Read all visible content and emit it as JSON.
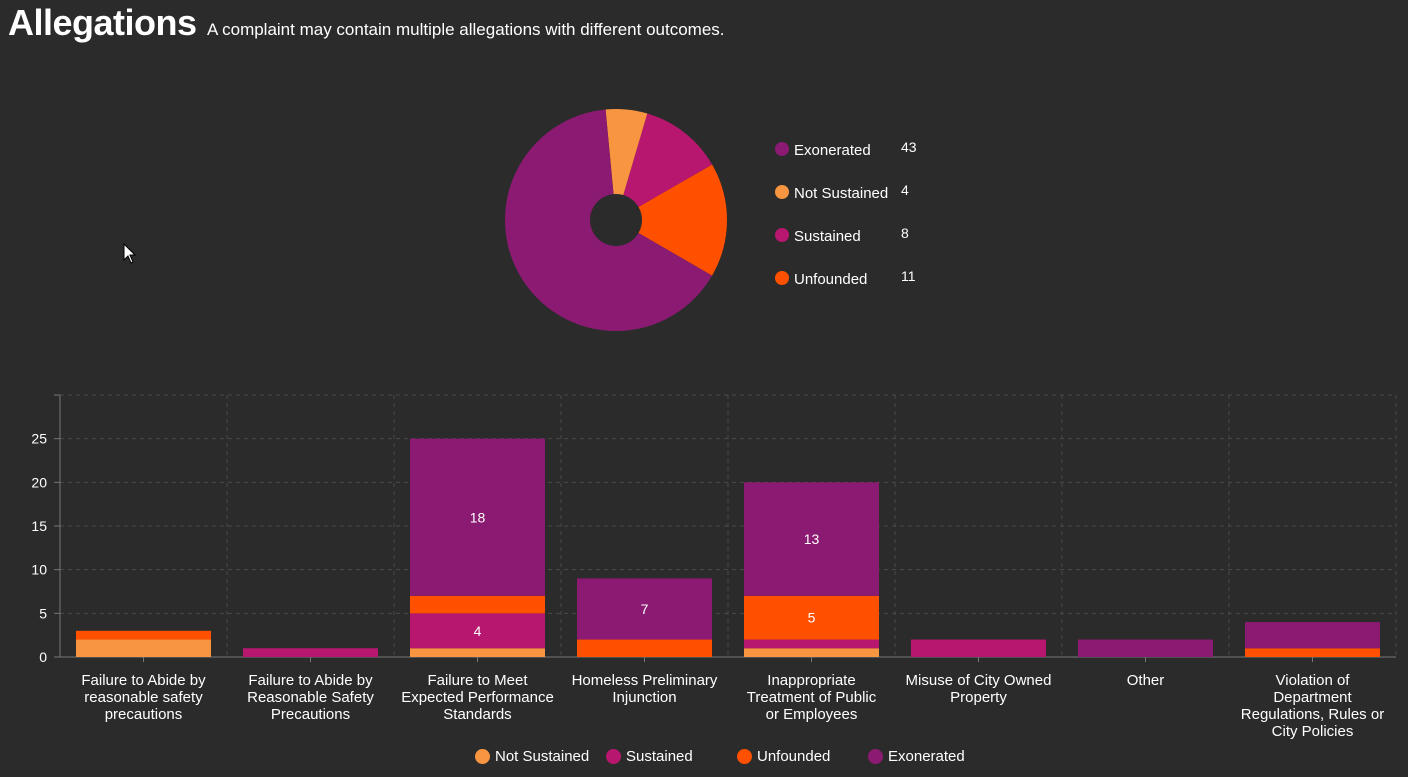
{
  "header": {
    "title": "Allegations",
    "subtitle": "A complaint may contain multiple allegations with different outcomes."
  },
  "colors": {
    "background": "#2b2b2b",
    "Exonerated": "#8b1a72",
    "Not Sustained": "#f89540",
    "Sustained": "#b8176f",
    "Unfounded": "#ff5000"
  },
  "chart_data": [
    {
      "type": "pie",
      "donut": true,
      "title": "",
      "slice_order": [
        "Not Sustained",
        "Sustained",
        "Unfounded",
        "Exonerated"
      ],
      "legend": [
        {
          "label": "Exonerated",
          "value": 43
        },
        {
          "label": "Not Sustained",
          "value": 4
        },
        {
          "label": "Sustained",
          "value": 8
        },
        {
          "label": "Unfounded",
          "value": 11
        }
      ],
      "legend_position": "right"
    },
    {
      "type": "bar",
      "stacked": true,
      "title": "",
      "xlabel": "",
      "ylabel": "",
      "ylim": [
        0,
        30
      ],
      "yticks": [
        0,
        5,
        10,
        15,
        20,
        25
      ],
      "grid": true,
      "categories": [
        "Failure to Abide by reasonable safety precautions",
        "Failure to Abide by Reasonable Safety Precautions",
        "Failure to Meet Expected Performance Standards",
        "Homeless Preliminary Injunction",
        "Inappropriate Treatment of Public or Employees",
        "Misuse of City Owned Property",
        "Other",
        "Violation of Department Regulations, Rules or City Policies"
      ],
      "category_lines": [
        [
          "Failure to Abide by",
          "reasonable safety",
          "precautions"
        ],
        [
          "Failure to Abide by",
          "Reasonable Safety",
          "Precautions"
        ],
        [
          "Failure to Meet",
          "Expected Performance",
          "Standards"
        ],
        [
          "Homeless Preliminary",
          "Injunction"
        ],
        [
          "Inappropriate",
          "Treatment of Public",
          "or Employees"
        ],
        [
          "Misuse of City Owned",
          "Property"
        ],
        [
          "Other"
        ],
        [
          "Violation of",
          "Department",
          "Regulations, Rules or",
          "City Policies"
        ]
      ],
      "series": [
        {
          "name": "Not Sustained",
          "values": [
            2,
            0,
            1,
            0,
            1,
            0,
            0,
            0
          ]
        },
        {
          "name": "Sustained",
          "values": [
            0,
            1,
            4,
            0,
            1,
            2,
            0,
            0
          ]
        },
        {
          "name": "Unfounded",
          "values": [
            1,
            0,
            2,
            2,
            5,
            0,
            0,
            1
          ]
        },
        {
          "name": "Exonerated",
          "values": [
            0,
            0,
            18,
            7,
            13,
            0,
            2,
            3
          ]
        }
      ],
      "data_label_min": 4,
      "legend": [
        "Not Sustained",
        "Sustained",
        "Unfounded",
        "Exonerated"
      ],
      "legend_position": "bottom"
    }
  ]
}
